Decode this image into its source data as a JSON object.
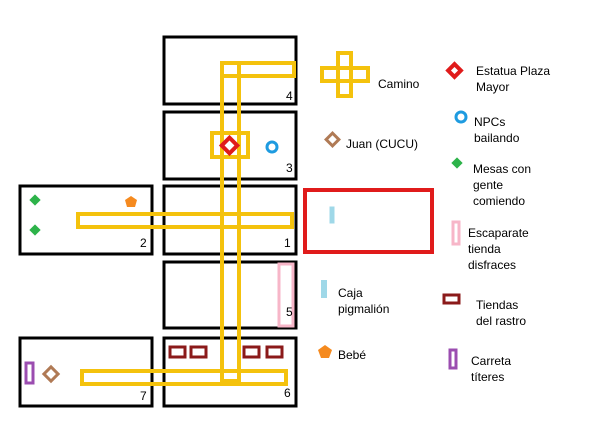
{
  "map": {
    "room_numbers": {
      "r1": "1",
      "r2": "2",
      "r3": "3",
      "r4": "4",
      "r5": "5",
      "r6": "6",
      "r7": "7"
    }
  },
  "legend": {
    "camino": "Camino",
    "estatua": "Estatua Plaza\nMayor",
    "juan": "Juan (CUCU)",
    "npcs": "NPCs\nbailando",
    "mesas": "Mesas con\ngente\ncomiendo",
    "escaparate": "Escaparate\ntienda\ndisfraces",
    "caja": "Caja\npigmalión",
    "tiendas": "Tiendas\ndel rastro",
    "bebe": "Bebé",
    "carreta": "Carreta\ntíteres"
  },
  "colors": {
    "path": "#f4c20d",
    "statue": "#e01b1b",
    "npc": "#1e9be0",
    "tables": "#2db34a",
    "juan": "#b07a55",
    "baby": "#f58a1f",
    "shopwindow": "#f7b6c8",
    "box": "#9fd8e8",
    "stall": "#8b1a1a",
    "cart": "#9b4db0"
  }
}
